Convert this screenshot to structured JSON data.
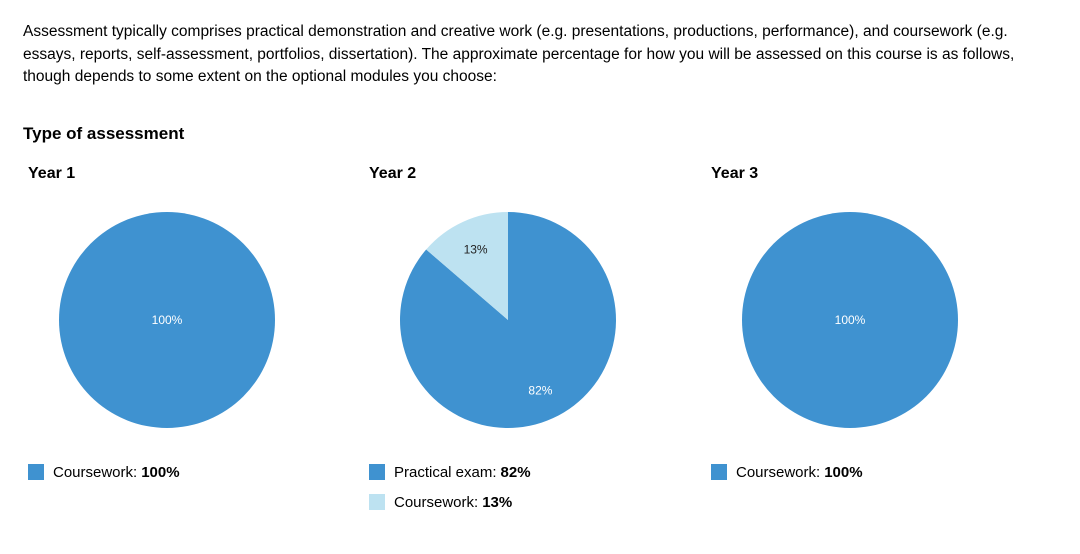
{
  "intro_text": "Assessment typically comprises practical demonstration and creative work (e.g. presentations, productions, performance), and coursework (e.g. essays, reports, self-assessment, portfolios, dissertation). The approximate percentage for how you will be assessed on this course is as follows, though depends to some extent on the optional modules you choose:",
  "section_title": "Type of assessment",
  "colors": {
    "dark_blue": "#3f92d0",
    "light_blue": "#bde2f1"
  },
  "chart_data": [
    {
      "type": "pie",
      "title": "Year 1",
      "slices": [
        {
          "label": "Coursework:",
          "value": 100,
          "display": "100%",
          "color": "#3f92d0"
        }
      ]
    },
    {
      "type": "pie",
      "title": "Year 2",
      "slices": [
        {
          "label": "Practical exam:",
          "value": 82,
          "display": "82%",
          "color": "#3f92d0"
        },
        {
          "label": "Coursework:",
          "value": 13,
          "display": "13%",
          "color": "#bde2f1"
        }
      ]
    },
    {
      "type": "pie",
      "title": "Year 3",
      "slices": [
        {
          "label": "Coursework:",
          "value": 100,
          "display": "100%",
          "color": "#3f92d0"
        }
      ]
    }
  ]
}
